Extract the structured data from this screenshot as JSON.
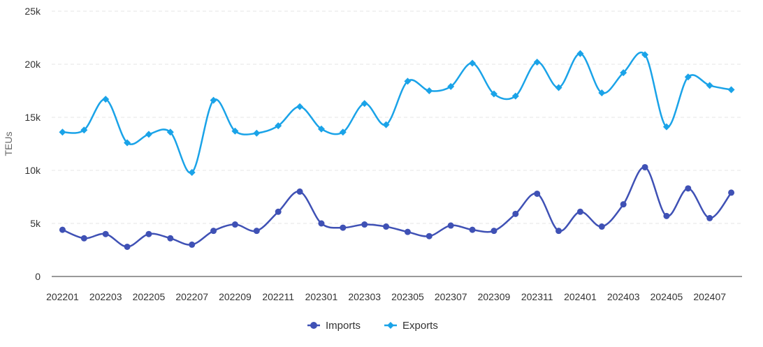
{
  "chart_data": {
    "type": "line",
    "title": "",
    "xlabel": "",
    "ylabel": "TEUs",
    "ylim": [
      0,
      25000
    ],
    "yticks": [
      0,
      5000,
      10000,
      15000,
      20000,
      25000
    ],
    "ytick_labels": [
      "0",
      "5k",
      "10k",
      "15k",
      "20k",
      "25k"
    ],
    "grid": true,
    "legend_position": "bottom-center",
    "x": [
      "202201",
      "202202",
      "202203",
      "202204",
      "202205",
      "202206",
      "202207",
      "202208",
      "202209",
      "202210",
      "202211",
      "202212",
      "202301",
      "202302",
      "202303",
      "202304",
      "202305",
      "202306",
      "202307",
      "202308",
      "202309",
      "202310",
      "202311",
      "202312",
      "202401",
      "202402",
      "202403",
      "202404",
      "202405",
      "202406",
      "202407",
      "202408"
    ],
    "xtick_labels": [
      "202201",
      "202203",
      "202205",
      "202207",
      "202209",
      "202211",
      "202301",
      "202303",
      "202305",
      "202307",
      "202309",
      "202311",
      "202401",
      "202403",
      "202405",
      "202407"
    ],
    "series": [
      {
        "name": "Imports",
        "color": "#3f51b5",
        "marker": "circle",
        "values": [
          4400,
          3600,
          4000,
          2800,
          4000,
          3600,
          3000,
          4300,
          4900,
          4300,
          6100,
          8000,
          5000,
          4600,
          4900,
          4700,
          4200,
          3800,
          4800,
          4400,
          4300,
          5900,
          7800,
          4300,
          6100,
          4700,
          6800,
          10300,
          5700,
          8300,
          5500,
          7900
        ]
      },
      {
        "name": "Exports",
        "color": "#1aa3e8",
        "marker": "diamond",
        "values": [
          13600,
          13800,
          16700,
          12600,
          13400,
          13600,
          9800,
          16600,
          13700,
          13500,
          14200,
          16000,
          13900,
          13600,
          16300,
          14300,
          18400,
          17500,
          17900,
          20100,
          17200,
          17000,
          20200,
          17800,
          21000,
          17300,
          19200,
          20900,
          14100,
          18800,
          18000,
          17600
        ]
      }
    ]
  }
}
